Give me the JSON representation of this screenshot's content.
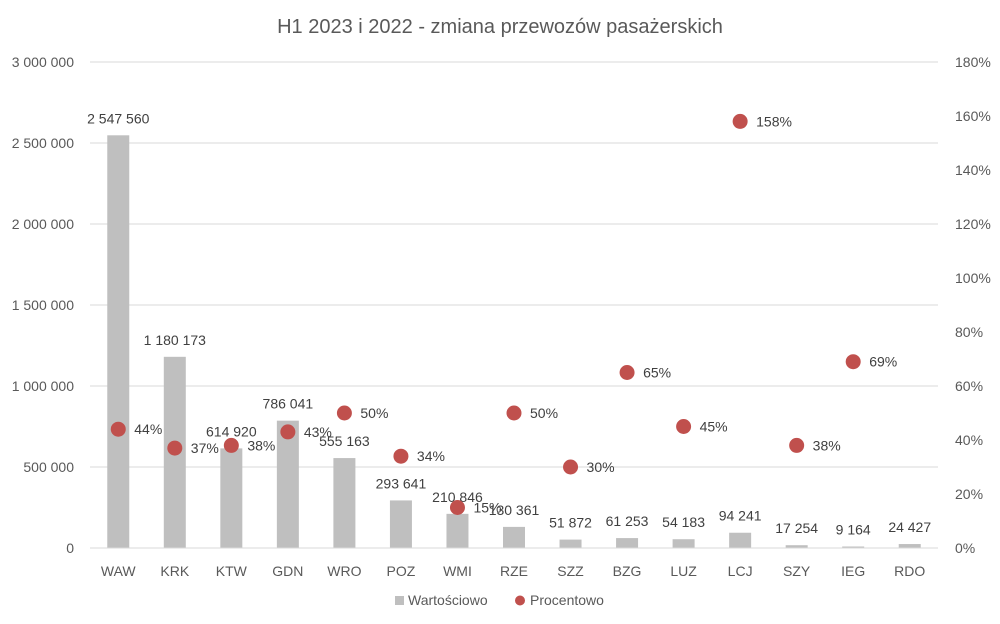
{
  "chart_data": {
    "type": "bar",
    "title": "H1 2023 i 2022 - zmiana przewozów pasażerskich",
    "categories": [
      "WAW",
      "KRK",
      "KTW",
      "GDN",
      "WRO",
      "POZ",
      "WMI",
      "RZE",
      "SZZ",
      "BZG",
      "LUZ",
      "LCJ",
      "SZY",
      "IEG",
      "RDO"
    ],
    "series": [
      {
        "name": "Wartościowo",
        "type": "bar",
        "axis": "left",
        "color": "#bfbfbf",
        "values": [
          2547560,
          1180173,
          614920,
          786041,
          555163,
          293641,
          210846,
          130361,
          51872,
          61253,
          54183,
          94241,
          17254,
          9164,
          24427
        ],
        "labels": [
          "2 547 560",
          "1 180 173",
          "614 920",
          "786 041",
          "555 163",
          "293 641",
          "210 846",
          "130 361",
          "51 872",
          "61 253",
          "54 183",
          "94 241",
          "17 254",
          "9 164",
          "24 427"
        ]
      },
      {
        "name": "Procentowo",
        "type": "scatter",
        "axis": "right",
        "color": "#c0504d",
        "values": [
          44,
          37,
          38,
          43,
          50,
          34,
          15,
          50,
          30,
          65,
          45,
          158,
          38,
          69,
          null
        ],
        "labels": [
          "44%",
          "37%",
          "38%",
          "43%",
          "50%",
          "34%",
          "15%",
          "50%",
          "30%",
          "65%",
          "45%",
          "158%",
          "38%",
          "69%",
          ""
        ]
      }
    ],
    "ylim": [
      0,
      3000000
    ],
    "yticks": [
      "0",
      "500 000",
      "1 000 000",
      "1 500 000",
      "2 000 000",
      "2 500 000",
      "3 000 000"
    ],
    "y2lim": [
      0,
      180
    ],
    "y2ticks": [
      "0%",
      "20%",
      "40%",
      "60%",
      "80%",
      "100%",
      "120%",
      "140%",
      "160%",
      "180%"
    ],
    "grid": true,
    "legend": "bottom"
  }
}
